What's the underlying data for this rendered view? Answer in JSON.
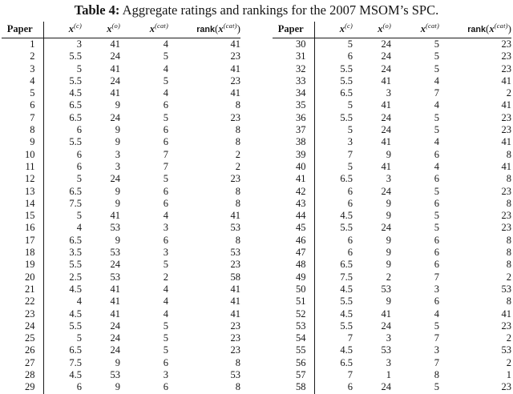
{
  "caption": {
    "tag": "Table 4:",
    "text": " Aggregate ratings and rankings for the 2007 MSOM’s SPC."
  },
  "columns": {
    "paper": "Paper",
    "x_symbol": "x",
    "sup_c": "(c)",
    "sup_o": "(o)",
    "sup_cat": "(cat)",
    "rank_fn": "rank",
    "paren_open": "(",
    "paren_close": ")"
  },
  "left_table": {
    "rows": [
      [
        "1",
        "3",
        "41",
        "4",
        "41"
      ],
      [
        "2",
        "5.5",
        "24",
        "5",
        "23"
      ],
      [
        "3",
        "5",
        "41",
        "4",
        "41"
      ],
      [
        "4",
        "5.5",
        "24",
        "5",
        "23"
      ],
      [
        "5",
        "4.5",
        "41",
        "4",
        "41"
      ],
      [
        "6",
        "6.5",
        "9",
        "6",
        "8"
      ],
      [
        "7",
        "6.5",
        "24",
        "5",
        "23"
      ],
      [
        "8",
        "6",
        "9",
        "6",
        "8"
      ],
      [
        "9",
        "5.5",
        "9",
        "6",
        "8"
      ],
      [
        "10",
        "6",
        "3",
        "7",
        "2"
      ],
      [
        "11",
        "6",
        "3",
        "7",
        "2"
      ],
      [
        "12",
        "5",
        "24",
        "5",
        "23"
      ],
      [
        "13",
        "6.5",
        "9",
        "6",
        "8"
      ],
      [
        "14",
        "7.5",
        "9",
        "6",
        "8"
      ],
      [
        "15",
        "5",
        "41",
        "4",
        "41"
      ],
      [
        "16",
        "4",
        "53",
        "3",
        "53"
      ],
      [
        "17",
        "6.5",
        "9",
        "6",
        "8"
      ],
      [
        "18",
        "3.5",
        "53",
        "3",
        "53"
      ],
      [
        "19",
        "5.5",
        "24",
        "5",
        "23"
      ],
      [
        "20",
        "2.5",
        "53",
        "2",
        "58"
      ],
      [
        "21",
        "4.5",
        "41",
        "4",
        "41"
      ],
      [
        "22",
        "4",
        "41",
        "4",
        "41"
      ],
      [
        "23",
        "4.5",
        "41",
        "4",
        "41"
      ],
      [
        "24",
        "5.5",
        "24",
        "5",
        "23"
      ],
      [
        "25",
        "5",
        "24",
        "5",
        "23"
      ],
      [
        "26",
        "6.5",
        "24",
        "5",
        "23"
      ],
      [
        "27",
        "7.5",
        "9",
        "6",
        "8"
      ],
      [
        "28",
        "4.5",
        "53",
        "3",
        "53"
      ],
      [
        "29",
        "6",
        "9",
        "6",
        "8"
      ]
    ]
  },
  "right_table": {
    "rows": [
      [
        "30",
        "5",
        "24",
        "5",
        "23"
      ],
      [
        "31",
        "6",
        "24",
        "5",
        "23"
      ],
      [
        "32",
        "5.5",
        "24",
        "5",
        "23"
      ],
      [
        "33",
        "5.5",
        "41",
        "4",
        "41"
      ],
      [
        "34",
        "6.5",
        "3",
        "7",
        "2"
      ],
      [
        "35",
        "5",
        "41",
        "4",
        "41"
      ],
      [
        "36",
        "5.5",
        "24",
        "5",
        "23"
      ],
      [
        "37",
        "5",
        "24",
        "5",
        "23"
      ],
      [
        "38",
        "3",
        "41",
        "4",
        "41"
      ],
      [
        "39",
        "7",
        "9",
        "6",
        "8"
      ],
      [
        "40",
        "5",
        "41",
        "4",
        "41"
      ],
      [
        "41",
        "6.5",
        "3",
        "6",
        "8"
      ],
      [
        "42",
        "6",
        "24",
        "5",
        "23"
      ],
      [
        "43",
        "6",
        "9",
        "6",
        "8"
      ],
      [
        "44",
        "4.5",
        "9",
        "5",
        "23"
      ],
      [
        "45",
        "5.5",
        "24",
        "5",
        "23"
      ],
      [
        "46",
        "6",
        "9",
        "6",
        "8"
      ],
      [
        "47",
        "6",
        "9",
        "6",
        "8"
      ],
      [
        "48",
        "6.5",
        "9",
        "6",
        "8"
      ],
      [
        "49",
        "7.5",
        "2",
        "7",
        "2"
      ],
      [
        "50",
        "4.5",
        "53",
        "3",
        "53"
      ],
      [
        "51",
        "5.5",
        "9",
        "6",
        "8"
      ],
      [
        "52",
        "4.5",
        "41",
        "4",
        "41"
      ],
      [
        "53",
        "5.5",
        "24",
        "5",
        "23"
      ],
      [
        "54",
        "7",
        "3",
        "7",
        "2"
      ],
      [
        "55",
        "4.5",
        "53",
        "3",
        "53"
      ],
      [
        "56",
        "6.5",
        "3",
        "7",
        "2"
      ],
      [
        "57",
        "7",
        "1",
        "8",
        "1"
      ],
      [
        "58",
        "6",
        "24",
        "5",
        "23"
      ]
    ]
  }
}
